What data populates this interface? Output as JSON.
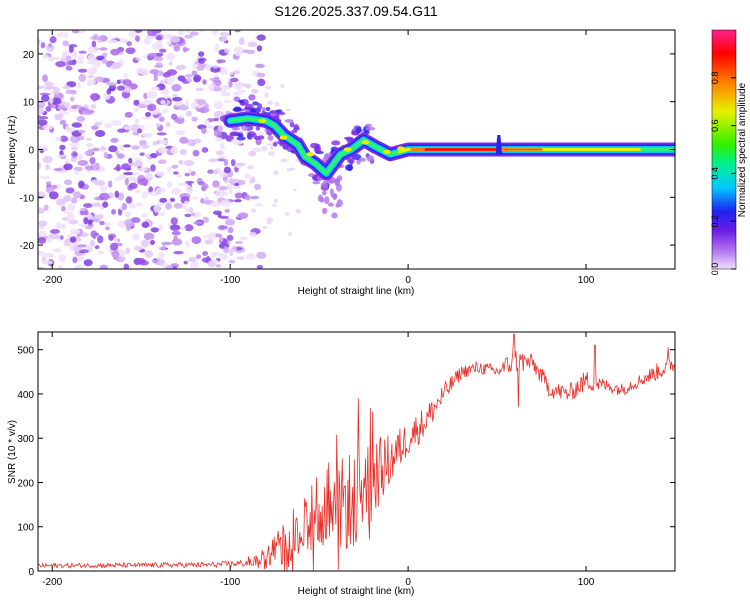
{
  "title": "S126.2025.337.09.54.G11",
  "chart_data": [
    {
      "type": "heatmap",
      "name": "spectrogram",
      "title": "S126.2025.337.09.54.G11",
      "xlabel": "Height of straight line (km)",
      "ylabel": "Frequency (Hz)",
      "xlim": [
        -208,
        150
      ],
      "ylim": [
        -25,
        25
      ],
      "xticks": [
        -200,
        -100,
        0,
        100
      ],
      "yticks": [
        -20,
        -10,
        0,
        10,
        20
      ],
      "colorbar": {
        "label": "Normalized spectral amplitude",
        "range": [
          0,
          1
        ],
        "ticks": [
          0.0,
          0.2,
          0.4,
          0.6,
          0.8
        ],
        "colors": [
          "#e8d0f8",
          "#b070f0",
          "#7020e0",
          "#2020f0",
          "#00c8ff",
          "#00f080",
          "#40f000",
          "#f0f000",
          "#ff8000",
          "#ff0000",
          "#ff2090"
        ]
      },
      "noise_region_km": [
        -208,
        -90
      ],
      "dominant_track": [
        {
          "x": -100,
          "y": 6
        },
        {
          "x": -90,
          "y": 6.5
        },
        {
          "x": -80,
          "y": 6
        },
        {
          "x": -75,
          "y": 5
        },
        {
          "x": -70,
          "y": 3
        },
        {
          "x": -62,
          "y": 1
        },
        {
          "x": -58,
          "y": -1.5
        },
        {
          "x": -52,
          "y": -3
        },
        {
          "x": -46,
          "y": -5
        },
        {
          "x": -42,
          "y": -3
        },
        {
          "x": -38,
          "y": -1
        },
        {
          "x": -32,
          "y": 0
        },
        {
          "x": -25,
          "y": 2
        },
        {
          "x": -18,
          "y": 0.5
        },
        {
          "x": -10,
          "y": -1
        },
        {
          "x": 0,
          "y": 0
        },
        {
          "x": 20,
          "y": 0
        },
        {
          "x": 50,
          "y": 0
        },
        {
          "x": 100,
          "y": 0
        },
        {
          "x": 150,
          "y": 0
        }
      ],
      "track_peak_km": [
        10,
        50
      ]
    },
    {
      "type": "line",
      "name": "snr",
      "xlabel": "Height of straight line (km)",
      "ylabel": "SNR (10 * v/v)",
      "xlim": [
        -208,
        150
      ],
      "ylim": [
        0,
        540
      ],
      "xticks": [
        -200,
        -100,
        0,
        100
      ],
      "yticks": [
        0,
        100,
        200,
        300,
        400,
        500
      ],
      "color": "#e8302a",
      "envelope": {
        "x": [
          -208,
          -110,
          -90,
          -80,
          -70,
          -60,
          -50,
          -40,
          -30,
          -20,
          -10,
          0,
          10,
          20,
          30,
          40,
          50,
          60,
          70,
          80,
          90,
          100,
          110,
          120,
          130,
          140,
          150
        ],
        "mid": [
          12,
          14,
          18,
          30,
          50,
          90,
          110,
          140,
          170,
          210,
          250,
          300,
          340,
          400,
          450,
          460,
          450,
          475,
          470,
          410,
          400,
          430,
          420,
          410,
          430,
          450,
          470
        ],
        "amp": [
          5,
          6,
          8,
          15,
          35,
          50,
          70,
          100,
          120,
          90,
          60,
          40,
          35,
          25,
          15,
          15,
          15,
          30,
          20,
          20,
          20,
          25,
          15,
          15,
          15,
          20,
          20
        ]
      },
      "spikes": [
        {
          "x": 59.5,
          "y": 535
        },
        {
          "x": 62,
          "y": 370
        },
        {
          "x": 105,
          "y": 510
        },
        {
          "x": 146,
          "y": 505
        },
        {
          "x": -28,
          "y": 390
        },
        {
          "x": -20,
          "y": 360
        }
      ]
    }
  ]
}
